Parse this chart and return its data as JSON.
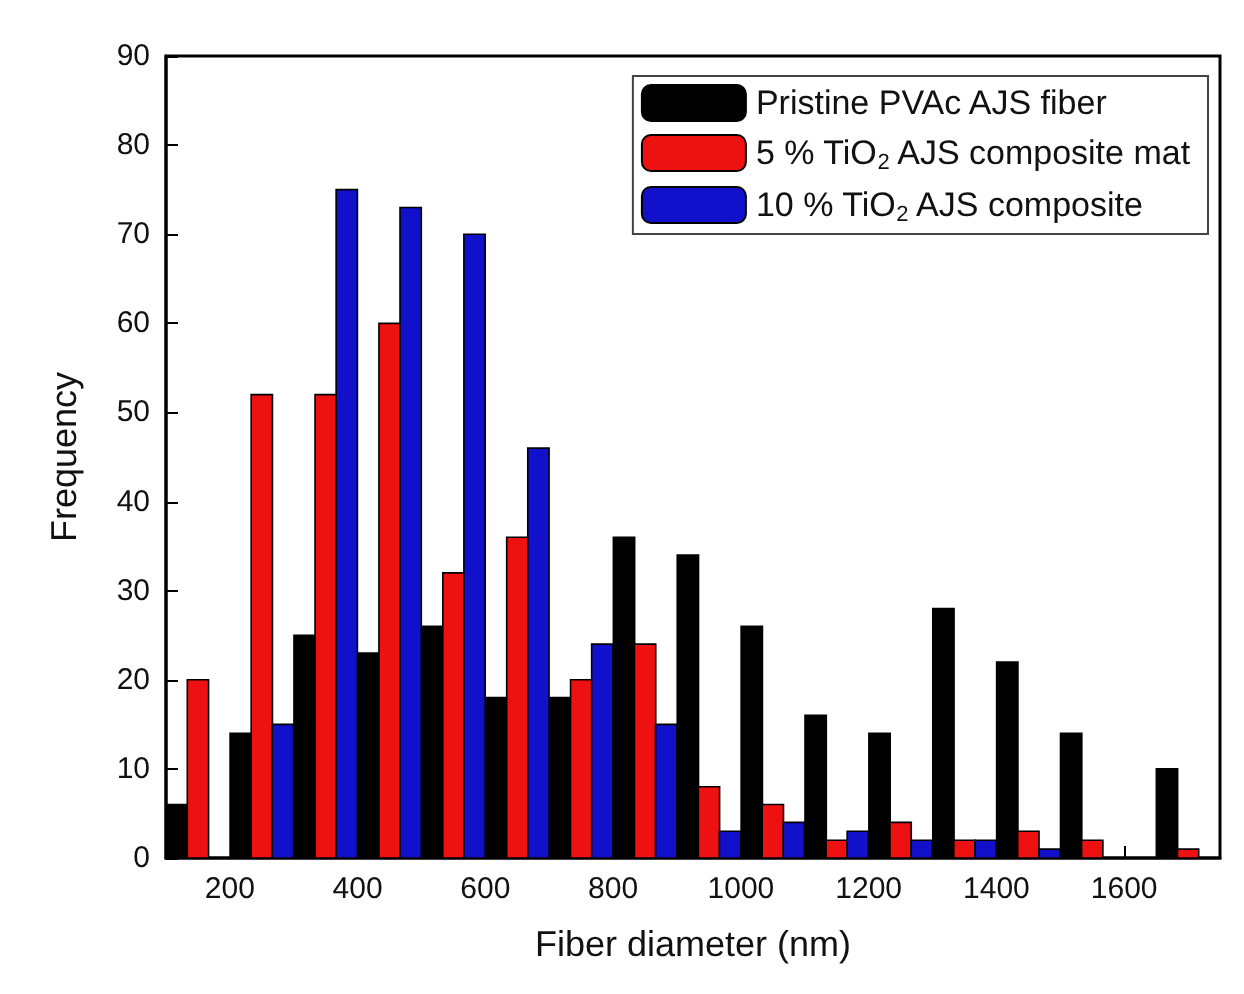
{
  "chart_data": {
    "type": "bar",
    "xlabel": "Fiber diameter (nm)",
    "ylabel": "Frequency",
    "series": [
      {
        "name": "Pristine PVAc AJS fiber",
        "color": "#000000",
        "x": [
          117,
          217,
          317,
          417,
          517,
          617,
          717,
          817,
          917,
          1017,
          1117,
          1217,
          1317,
          1417,
          1517,
          1667
        ],
        "values": [
          6,
          14,
          25,
          23,
          26,
          18,
          18,
          36,
          34,
          26,
          16,
          14,
          28,
          22,
          14,
          10
        ]
      },
      {
        "name": "5 % TiO$_{2}$ AJS composite mat",
        "color": "#ee1111",
        "x": [
          150,
          250,
          350,
          450,
          550,
          650,
          750,
          850,
          950,
          1050,
          1150,
          1250,
          1350,
          1450,
          1550,
          1700
        ],
        "values": [
          20,
          52,
          52,
          60,
          32,
          36,
          20,
          24,
          8,
          6,
          2,
          4,
          2,
          3,
          2,
          1
        ]
      },
      {
        "name": "10 % TiO$_{2}$ AJS composite",
        "color": "#1111cc",
        "x": [
          283,
          383,
          483,
          583,
          683,
          783,
          883,
          983,
          1083,
          1183,
          1283,
          1383,
          1483
        ],
        "values": [
          15,
          75,
          73,
          70,
          46,
          24,
          15,
          3,
          4,
          3,
          2,
          2,
          1
        ]
      }
    ],
    "xlim": [
      100,
      1750
    ],
    "xticks": [
      200,
      400,
      600,
      800,
      1000,
      1200,
      1400,
      1600
    ],
    "ylim": [
      0,
      90
    ],
    "yticks": [
      0,
      10,
      20,
      30,
      40,
      50,
      60,
      70,
      80,
      90
    ],
    "grid": false,
    "legend": "top right"
  }
}
